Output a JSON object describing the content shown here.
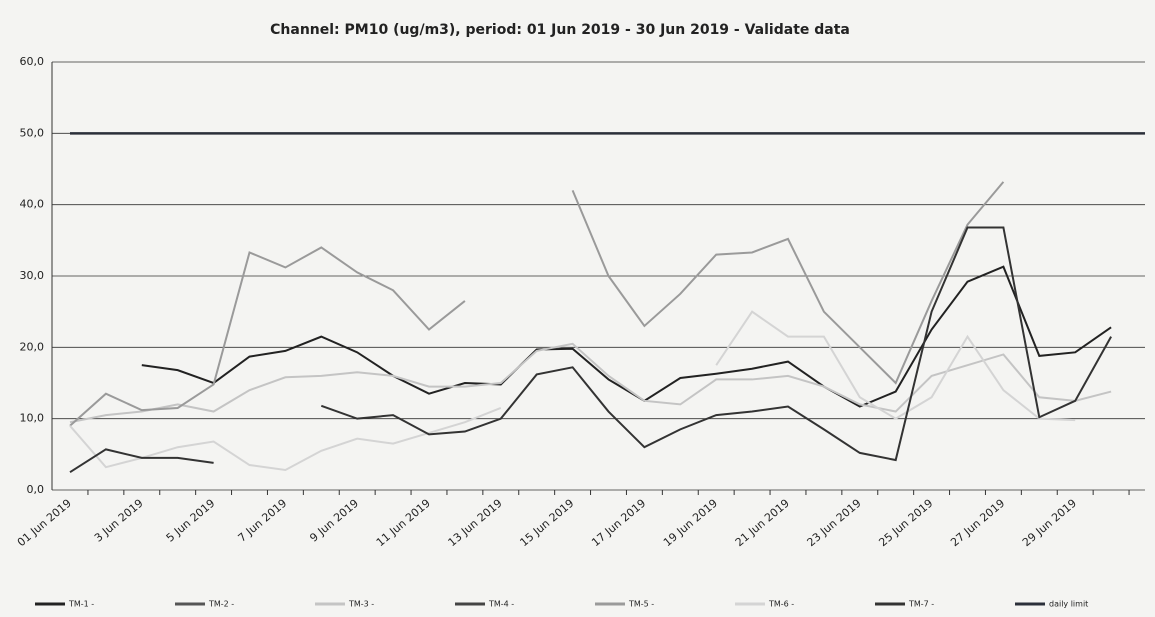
{
  "chart_data": {
    "type": "line",
    "title": "Channel: PM10 (ug/m3), period: 01 Jun 2019 - 30 Jun 2019 - Validate data",
    "categories": [
      "01 Jun 2019",
      null,
      "3 Jun 2019",
      null,
      "5 Jun 2019",
      null,
      "7 Jun 2019",
      null,
      "9 Jun 2019",
      null,
      "11 Jun 2019",
      null,
      "13 Jun 2019",
      null,
      "15 Jun 2019",
      null,
      "17 Jun 2019",
      null,
      "19 Jun 2019",
      null,
      "21 Jun 2019",
      null,
      "23 Jun 2019",
      null,
      "25 Jun 2019",
      null,
      "27 Jun 2019",
      null,
      "29 Jun 2019",
      null
    ],
    "series": [
      {
        "name": "TM-1 -",
        "color": "#222222",
        "values": [
          null,
          null,
          17.5,
          16.8,
          15,
          18.7,
          19.5,
          21.5,
          19.3,
          16,
          13.5,
          15,
          14.8,
          19.7,
          19.8,
          15.5,
          12.5,
          15.7,
          16.3,
          17,
          18,
          14.5,
          11.7,
          13.8,
          22.5,
          29.2,
          31.3,
          18.8,
          19.3,
          22.8
        ]
      },
      {
        "name": "TM-2 -",
        "color": "#555555",
        "values": [
          null,
          null,
          null,
          null,
          null,
          null,
          null,
          null,
          null,
          null,
          null,
          null,
          null,
          null,
          null,
          null,
          null,
          null,
          null,
          null,
          null,
          null,
          null,
          null,
          null,
          null,
          null,
          null,
          null,
          null
        ]
      },
      {
        "name": "TM-3 -",
        "color": "#c4c4c4",
        "values": [
          9.5,
          10.5,
          11,
          12,
          11,
          14,
          15.8,
          16,
          16.5,
          16,
          14.5,
          14.5,
          15,
          19.5,
          20.5,
          16,
          12.5,
          12,
          15.5,
          15.5,
          16,
          14.5,
          12,
          11,
          16,
          17.5,
          19,
          13,
          12.5,
          13.8
        ]
      },
      {
        "name": "TM-4 -",
        "color": "#444444",
        "values": [
          null,
          null,
          null,
          null,
          null,
          null,
          null,
          null,
          null,
          null,
          null,
          null,
          null,
          null,
          null,
          null,
          null,
          null,
          null,
          null,
          null,
          null,
          null,
          null,
          null,
          null,
          null,
          null,
          null,
          null
        ]
      },
      {
        "name": "TM-5 -",
        "color": "#9a9a9a",
        "values": [
          9,
          13.5,
          11.2,
          11.5,
          14.8,
          33.3,
          31.2,
          34,
          30.5,
          28,
          22.5,
          26.5,
          null,
          null,
          42,
          30,
          23,
          27.5,
          33,
          33.3,
          35.2,
          25,
          20,
          15,
          26.5,
          37.2,
          43.2,
          null,
          null,
          null
        ]
      },
      {
        "name": "TM-6 -",
        "color": "#d4d4d4",
        "values": [
          9,
          3.2,
          4.5,
          6,
          6.8,
          3.5,
          2.8,
          5.5,
          7.2,
          6.5,
          8,
          9.5,
          11.5,
          null,
          null,
          null,
          null,
          null,
          17.5,
          25,
          21.5,
          21.5,
          13,
          10,
          13,
          21.5,
          14,
          10,
          9.8,
          null
        ]
      },
      {
        "name": "TM-7 -",
        "color": "#333333",
        "values": [
          2.5,
          5.7,
          4.5,
          4.5,
          3.8,
          null,
          null,
          11.8,
          10,
          10.5,
          7.8,
          8.2,
          10,
          16.2,
          17.2,
          11,
          6,
          8.5,
          10.5,
          11,
          11.7,
          8.5,
          5.2,
          4.2,
          25,
          36.8,
          36.8,
          10.2,
          12.5,
          21.5
        ]
      },
      {
        "name": "daily limit",
        "color": "#2b2f3a",
        "values": [
          50,
          50,
          50,
          50,
          50,
          50,
          50,
          50,
          50,
          50,
          50,
          50,
          50,
          50,
          50,
          50,
          50,
          50,
          50,
          50,
          50,
          50,
          50,
          50,
          50,
          50,
          50,
          50,
          50,
          50
        ]
      }
    ],
    "ylim": [
      0,
      60
    ],
    "yticks": [
      {
        "value": 0,
        "label": "0,0"
      },
      {
        "value": 10,
        "label": "10,0"
      },
      {
        "value": 20,
        "label": "20,0"
      },
      {
        "value": 30,
        "label": "30,0"
      },
      {
        "value": 40,
        "label": "40,0"
      },
      {
        "value": 50,
        "label": "50,0"
      },
      {
        "value": 60,
        "label": "60,0"
      }
    ],
    "grid": true,
    "legend": "bottom"
  }
}
